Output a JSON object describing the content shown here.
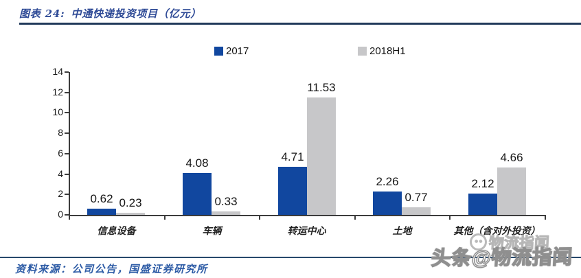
{
  "header": {
    "figure_label": "图表 24:",
    "title": "中通快递投资项目（亿元）"
  },
  "chart_data": {
    "type": "bar",
    "title": "中通快递投资项目（亿元）",
    "categories": [
      "信息设备",
      "车辆",
      "转运中心",
      "土地",
      "其他（含对外投资）"
    ],
    "series": [
      {
        "name": "2017",
        "color": "#11479f",
        "values": [
          0.62,
          4.08,
          4.71,
          2.26,
          2.12
        ]
      },
      {
        "name": "2018H1",
        "color": "#c7c7c9",
        "values": [
          0.23,
          0.33,
          11.53,
          0.77,
          4.66
        ]
      }
    ],
    "xlabel": "",
    "ylabel": "",
    "ylim": [
      0,
      14
    ],
    "ytick_step": 2,
    "grid": false,
    "legend_position": "top",
    "value_labels": true
  },
  "footer": {
    "source": "资料来源：公司公告，国盛证券研究所"
  },
  "watermark": {
    "ghost": "物流指闻",
    "main": "头条@物流指闻"
  },
  "colors": {
    "bar_2017": "#11479f",
    "bar_2018h1": "#c7c7c9",
    "rule_top": "#21395a",
    "rule_bottom": "#27486b",
    "title_text": "#2e4a96",
    "footer_text": "#2e5ca6",
    "axis": "#3c3c3c"
  }
}
